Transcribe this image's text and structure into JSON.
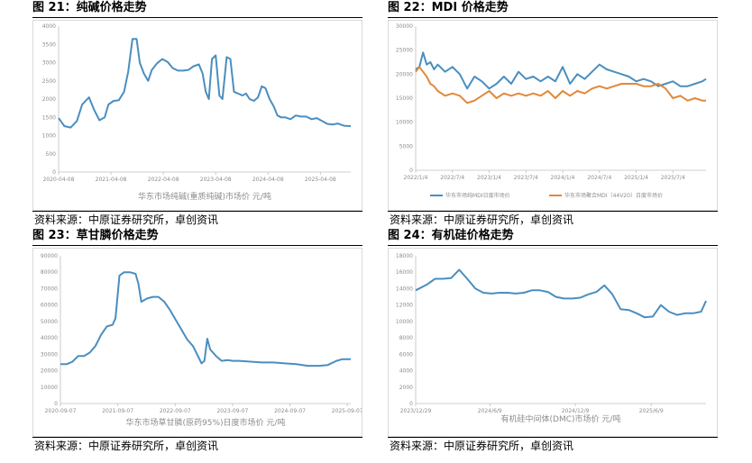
{
  "source_label": "资料来源：中原证券研究所，卓创资讯",
  "chart_data": [
    {
      "id": "p21",
      "type": "line",
      "title": "图 21：纯碱价格走势",
      "caption": "华东市场纯碱(重质纯碱)市场价 元/吨",
      "ylim": [
        0,
        4000
      ],
      "yticks": [
        "0",
        "500",
        "1000",
        "1500",
        "2000",
        "2500",
        "3000",
        "3500",
        "4000"
      ],
      "xlim": [
        2020.27,
        2025.85
      ],
      "xticks": [
        {
          "pos": 2020.27,
          "label": "2020-04-08"
        },
        {
          "pos": 2021.27,
          "label": "2021-04-08"
        },
        {
          "pos": 2022.27,
          "label": "2022-04-08"
        },
        {
          "pos": 2023.27,
          "label": "2023-04-08"
        },
        {
          "pos": 2024.27,
          "label": "2024-04-08"
        },
        {
          "pos": 2025.27,
          "label": "2025-04-08"
        }
      ],
      "series": [
        {
          "color": "#4a8ec0",
          "x": [
            2020.27,
            2020.38,
            2020.5,
            2020.62,
            2020.72,
            2020.85,
            2020.95,
            2021.05,
            2021.15,
            2021.22,
            2021.32,
            2021.42,
            2021.52,
            2021.6,
            2021.68,
            2021.76,
            2021.82,
            2021.9,
            2021.98,
            2022.05,
            2022.15,
            2022.25,
            2022.35,
            2022.45,
            2022.55,
            2022.65,
            2022.75,
            2022.85,
            2022.95,
            2023.02,
            2023.08,
            2023.14,
            2023.2,
            2023.27,
            2023.34,
            2023.4,
            2023.48,
            2023.55,
            2023.62,
            2023.7,
            2023.78,
            2023.85,
            2023.92,
            2024.0,
            2024.08,
            2024.15,
            2024.22,
            2024.3,
            2024.38,
            2024.45,
            2024.52,
            2024.6,
            2024.7,
            2024.8,
            2024.9,
            2025.0,
            2025.1,
            2025.2,
            2025.3,
            2025.4,
            2025.5,
            2025.6,
            2025.72,
            2025.85
          ],
          "y": [
            1480,
            1260,
            1220,
            1400,
            1850,
            2050,
            1700,
            1420,
            1500,
            1850,
            1950,
            1970,
            2200,
            2750,
            3650,
            3650,
            3000,
            2700,
            2500,
            2800,
            2980,
            3100,
            3020,
            2850,
            2780,
            2780,
            2800,
            2900,
            2950,
            2700,
            2200,
            2000,
            3100,
            3200,
            2100,
            2000,
            3150,
            3100,
            2200,
            2150,
            2100,
            2150,
            2000,
            1950,
            2050,
            2350,
            2300,
            2000,
            1800,
            1550,
            1500,
            1500,
            1450,
            1550,
            1520,
            1520,
            1450,
            1480,
            1400,
            1320,
            1300,
            1330,
            1270,
            1260
          ]
        }
      ]
    },
    {
      "id": "p22",
      "type": "line",
      "title": "图 22：MDI 价格走势",
      "caption": "",
      "ylim": [
        0,
        30000
      ],
      "yticks": [
        "0",
        "5000",
        "10000",
        "15000",
        "20000",
        "25000",
        "30000"
      ],
      "xlim": [
        2022.0,
        2025.95
      ],
      "xticks": [
        {
          "pos": 2022.0,
          "label": "2022/1/4"
        },
        {
          "pos": 2022.5,
          "label": "2022/7/4"
        },
        {
          "pos": 2023.0,
          "label": "2023/1/4"
        },
        {
          "pos": 2023.5,
          "label": "2023/7/4"
        },
        {
          "pos": 2024.0,
          "label": "2024/1/4"
        },
        {
          "pos": 2024.5,
          "label": "2024/7/4"
        },
        {
          "pos": 2025.0,
          "label": "2025/1/4"
        },
        {
          "pos": 2025.5,
          "label": "2025/7/4"
        }
      ],
      "series": [
        {
          "name": "华东市场纯MDI日度市场价",
          "color": "#4a8ec0",
          "x": [
            2022.0,
            2022.05,
            2022.1,
            2022.15,
            2022.2,
            2022.25,
            2022.3,
            2022.4,
            2022.5,
            2022.6,
            2022.7,
            2022.8,
            2022.9,
            2023.0,
            2023.1,
            2023.2,
            2023.3,
            2023.4,
            2023.5,
            2023.6,
            2023.7,
            2023.8,
            2023.9,
            2024.0,
            2024.1,
            2024.2,
            2024.3,
            2024.4,
            2024.5,
            2024.6,
            2024.7,
            2024.8,
            2024.9,
            2025.0,
            2025.1,
            2025.2,
            2025.3,
            2025.4,
            2025.5,
            2025.6,
            2025.7,
            2025.8,
            2025.9,
            2025.95
          ],
          "y": [
            21000,
            21500,
            24500,
            22000,
            22500,
            21000,
            22000,
            20500,
            21500,
            20000,
            17000,
            19500,
            18500,
            17000,
            18000,
            19500,
            18000,
            20500,
            19000,
            19500,
            18500,
            19500,
            18500,
            21500,
            18000,
            20000,
            19000,
            20500,
            22000,
            21000,
            20500,
            20000,
            19500,
            18500,
            19000,
            18500,
            17500,
            18000,
            18500,
            17500,
            17500,
            18000,
            18500,
            19000
          ]
        },
        {
          "name": "华东市场聚合MDI（44V20）日度市场价",
          "color": "#e0893a",
          "x": [
            2022.0,
            2022.05,
            2022.1,
            2022.15,
            2022.2,
            2022.25,
            2022.3,
            2022.4,
            2022.5,
            2022.6,
            2022.7,
            2022.8,
            2022.9,
            2023.0,
            2023.1,
            2023.2,
            2023.3,
            2023.4,
            2023.5,
            2023.6,
            2023.7,
            2023.8,
            2023.9,
            2024.0,
            2024.1,
            2024.2,
            2024.3,
            2024.4,
            2024.5,
            2024.6,
            2024.7,
            2024.8,
            2024.9,
            2025.0,
            2025.1,
            2025.2,
            2025.3,
            2025.4,
            2025.5,
            2025.6,
            2025.7,
            2025.8,
            2025.9,
            2025.95
          ],
          "y": [
            20500,
            21500,
            20500,
            19500,
            18000,
            17500,
            16500,
            15500,
            16000,
            15500,
            14000,
            14500,
            15500,
            16500,
            15000,
            16000,
            15500,
            16000,
            15500,
            16000,
            15500,
            16500,
            15000,
            16500,
            15500,
            16500,
            16000,
            17000,
            17500,
            17000,
            17500,
            18000,
            18000,
            18000,
            17500,
            17500,
            18000,
            17000,
            15000,
            15500,
            14500,
            15000,
            14500,
            14500
          ]
        }
      ]
    },
    {
      "id": "p23",
      "type": "line",
      "title": "图 23：草甘膦价格走势",
      "caption": "华东市场草甘膦(原药95%)日度市场价 元/吨",
      "ylim": [
        0,
        90000
      ],
      "yticks": [
        "0",
        "10000",
        "20000",
        "30000",
        "40000",
        "50000",
        "60000",
        "70000",
        "80000",
        "90000"
      ],
      "xlim": [
        2020.69,
        2025.75
      ],
      "xticks": [
        {
          "pos": 2020.69,
          "label": "2020-09-07"
        },
        {
          "pos": 2021.69,
          "label": "2021-09-07"
        },
        {
          "pos": 2022.69,
          "label": "2022-09-07"
        },
        {
          "pos": 2023.69,
          "label": "2023-09-07"
        },
        {
          "pos": 2024.69,
          "label": "2024-09-07"
        },
        {
          "pos": 2025.69,
          "label": "2025-09-07"
        }
      ],
      "series": [
        {
          "color": "#4a8ec0",
          "x": [
            2020.69,
            2020.8,
            2020.9,
            2021.0,
            2021.1,
            2021.2,
            2021.3,
            2021.4,
            2021.5,
            2021.6,
            2021.65,
            2021.72,
            2021.8,
            2021.9,
            2022.0,
            2022.05,
            2022.1,
            2022.2,
            2022.3,
            2022.4,
            2022.5,
            2022.6,
            2022.7,
            2022.8,
            2022.9,
            2023.0,
            2023.1,
            2023.15,
            2023.2,
            2023.25,
            2023.3,
            2023.4,
            2023.5,
            2023.6,
            2023.7,
            2023.8,
            2023.9,
            2024.0,
            2024.2,
            2024.4,
            2024.6,
            2024.8,
            2025.0,
            2025.2,
            2025.35,
            2025.5,
            2025.6,
            2025.75
          ],
          "y": [
            24000,
            24000,
            25500,
            29000,
            29000,
            31000,
            35000,
            42000,
            47000,
            48000,
            52000,
            78000,
            80000,
            80000,
            79000,
            73000,
            62000,
            64000,
            65000,
            65000,
            62000,
            57000,
            51000,
            45000,
            39000,
            35000,
            28000,
            24500,
            26000,
            39500,
            33000,
            29000,
            26000,
            26500,
            26000,
            26000,
            25800,
            25500,
            25000,
            25000,
            24500,
            24000,
            23000,
            23000,
            23500,
            26000,
            27000,
            27000
          ]
        }
      ]
    },
    {
      "id": "p24",
      "type": "line",
      "title": "图 24：有机硅价格走势",
      "caption": "有机硅中间体(DMC)市场价 元/吨",
      "ylim": [
        0,
        18000
      ],
      "yticks": [
        "0",
        "2000",
        "4000",
        "6000",
        "8000",
        "10000",
        "12000",
        "14000",
        "16000",
        "18000"
      ],
      "xlim": [
        2023.98,
        2025.78
      ],
      "xticks": [
        {
          "pos": 2023.98,
          "label": "2023/12/29"
        },
        {
          "pos": 2024.44,
          "label": "2024/6/9"
        },
        {
          "pos": 2024.97,
          "label": "2024/12/9"
        },
        {
          "pos": 2025.44,
          "label": "2025/6/9"
        }
      ],
      "series": [
        {
          "color": "#4a8ec0",
          "x": [
            2023.98,
            2024.05,
            2024.1,
            2024.15,
            2024.2,
            2024.25,
            2024.3,
            2024.35,
            2024.4,
            2024.45,
            2024.5,
            2024.55,
            2024.6,
            2024.65,
            2024.7,
            2024.75,
            2024.8,
            2024.85,
            2024.9,
            2024.95,
            2025.0,
            2025.05,
            2025.1,
            2025.15,
            2025.2,
            2025.25,
            2025.3,
            2025.35,
            2025.4,
            2025.45,
            2025.5,
            2025.55,
            2025.6,
            2025.65,
            2025.7,
            2025.75,
            2025.78
          ],
          "y": [
            13800,
            14500,
            15200,
            15200,
            15300,
            16300,
            15200,
            14000,
            13500,
            13400,
            13500,
            13500,
            13400,
            13500,
            13800,
            13800,
            13600,
            13000,
            12800,
            12800,
            12900,
            13300,
            13600,
            14400,
            13300,
            11500,
            11400,
            11000,
            10500,
            10600,
            12000,
            11200,
            10800,
            11000,
            11000,
            11200,
            12500
          ]
        }
      ]
    }
  ]
}
